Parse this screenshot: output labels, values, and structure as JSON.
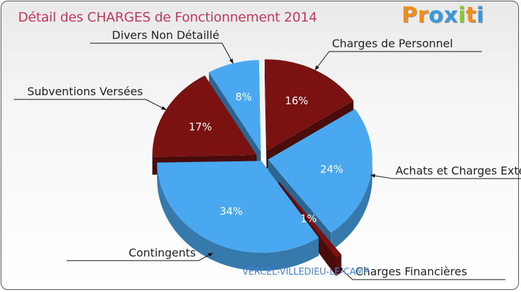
{
  "title": "Détail des CHARGES de Fonctionnement 2014",
  "logo": {
    "text": "Proxiti",
    "letters": [
      "P",
      "r",
      "o",
      "x",
      "i",
      "t",
      "i"
    ],
    "colors": [
      "#f08c1a",
      "#f08c1a",
      "#3a9ad9",
      "#3a9ad9",
      "#8dc63f",
      "#f08c1a",
      "#3a9ad9"
    ]
  },
  "subtitle": "VERCEL-VILLEDIEU-LE-CAMP",
  "chart_data": {
    "type": "pie",
    "title": "Détail des CHARGES de Fonctionnement 2014",
    "slices": [
      {
        "name": "Charges de Personnel",
        "pct_label": "16%",
        "value": 16,
        "color": "#7b1212"
      },
      {
        "name": "Achats et Charges Externes",
        "pct_label": "24%",
        "value": 24,
        "color": "#4aa8f0"
      },
      {
        "name": "Charges Financières",
        "pct_label": "1%",
        "value": 1,
        "color": "#7b1212"
      },
      {
        "name": "Contingents",
        "pct_label": "34%",
        "value": 34,
        "color": "#4aa8f0"
      },
      {
        "name": "Subventions Versées",
        "pct_label": "17%",
        "value": 17,
        "color": "#7b1212"
      },
      {
        "name": "Divers Non Détaillé",
        "pct_label": "8%",
        "value": 8,
        "color": "#4aa8f0"
      }
    ]
  }
}
